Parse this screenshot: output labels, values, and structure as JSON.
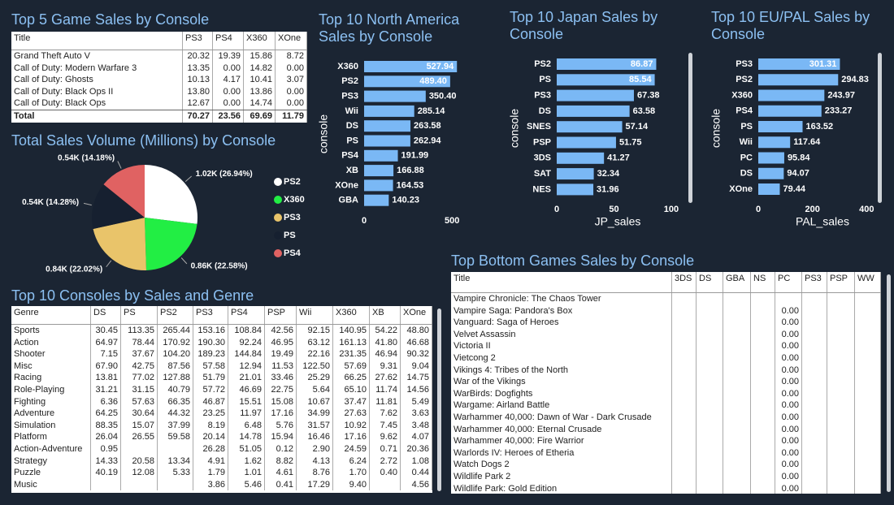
{
  "chart_data": [
    {
      "type": "pie",
      "title": "Total Sales Volume (Millions) by Console",
      "categories": [
        "PS2",
        "X360",
        "PS3",
        "PS",
        "PS4"
      ],
      "values": [
        26.94,
        22.58,
        22.02,
        14.28,
        14.18
      ],
      "value_labels": [
        "1.02K (26.94%)",
        "0.86K (22.58%)",
        "0.84K (22.02%)",
        "0.54K (14.28%)",
        "0.54K (14.18%)"
      ],
      "colors": [
        "#ffffff",
        "#22ee44",
        "#e9c46a",
        "#162030",
        "#e06262"
      ]
    },
    {
      "type": "bar",
      "title": "Top 10 North America Sales by Console",
      "y_label": "console",
      "categories": [
        "X360",
        "PS2",
        "PS3",
        "Wii",
        "DS",
        "PS",
        "PS4",
        "XB",
        "XOne",
        "GBA"
      ],
      "values": [
        527.94,
        489.4,
        350.4,
        285.14,
        263.58,
        262.94,
        191.99,
        166.88,
        164.53,
        140.23
      ],
      "value_labels": [
        "527.94",
        "489.40",
        "350.40",
        "285.14",
        "263.58",
        "262.94",
        "191.99",
        "166.88",
        "164.53",
        "140.23"
      ],
      "color": "#7ab8f5",
      "xlim": [
        0,
        550
      ],
      "xticks": [
        0,
        500
      ]
    },
    {
      "type": "bar",
      "title": "Top 10 Japan Sales by Console",
      "y_label": "console",
      "x_label": "JP_sales",
      "categories": [
        "PS2",
        "PS",
        "PS3",
        "DS",
        "SNES",
        "PSP",
        "3DS",
        "SAT",
        "NES"
      ],
      "values": [
        86.87,
        85.54,
        67.38,
        63.58,
        57.14,
        51.75,
        41.27,
        32.34,
        31.96
      ],
      "color": "#7ab8f5",
      "xlim": [
        0,
        105
      ],
      "xticks": [
        0,
        50,
        100
      ]
    },
    {
      "type": "bar",
      "title": "Top 10 EU/PAL Sales by Console",
      "y_label": "console",
      "x_label": "PAL_sales",
      "categories": [
        "PS3",
        "PS2",
        "X360",
        "PS4",
        "PS",
        "Wii",
        "PC",
        "DS",
        "XOne"
      ],
      "values": [
        301.31,
        294.83,
        243.97,
        233.27,
        163.52,
        117.64,
        95.84,
        94.07,
        79.44
      ],
      "color": "#7ab8f5",
      "xlim": [
        0,
        420
      ],
      "xticks": [
        0,
        200,
        400
      ]
    }
  ],
  "tables": [
    {
      "title": "Top 5 Game Sales by Console",
      "columns": [
        "Title",
        "PS3",
        "PS4",
        "X360",
        "XOne"
      ],
      "rows": [
        [
          "Grand Theft Auto V",
          "20.32",
          "19.39",
          "15.86",
          "8.72"
        ],
        [
          "Call of Duty: Modern Warfare 3",
          "13.35",
          "0.00",
          "14.82",
          "0.00"
        ],
        [
          "Call of Duty: Ghosts",
          "10.13",
          "4.17",
          "10.41",
          "3.07"
        ],
        [
          "Call of Duty: Black Ops II",
          "13.80",
          "0.00",
          "13.86",
          "0.00"
        ],
        [
          "Call of Duty: Black Ops",
          "12.67",
          "0.00",
          "14.74",
          "0.00"
        ]
      ],
      "total_row": [
        "Total",
        "70.27",
        "23.56",
        "69.69",
        "11.79"
      ]
    },
    {
      "title": "Top 10 Consoles by Sales and Genre",
      "columns": [
        "Genre",
        "DS",
        "PS",
        "PS2",
        "PS3",
        "PS4",
        "PSP",
        "Wii",
        "X360",
        "XB",
        "XOne"
      ],
      "rows": [
        [
          "Sports",
          "30.45",
          "113.35",
          "265.44",
          "153.16",
          "108.84",
          "42.56",
          "92.15",
          "140.95",
          "54.22",
          "48.80"
        ],
        [
          "Action",
          "64.97",
          "78.44",
          "170.92",
          "190.30",
          "92.24",
          "46.95",
          "63.12",
          "161.13",
          "41.80",
          "46.68"
        ],
        [
          "Shooter",
          "7.15",
          "37.67",
          "104.20",
          "189.23",
          "144.84",
          "19.49",
          "22.16",
          "231.35",
          "46.94",
          "90.32"
        ],
        [
          "Misc",
          "67.90",
          "42.75",
          "87.56",
          "57.58",
          "12.94",
          "11.53",
          "122.50",
          "57.69",
          "9.31",
          "9.04"
        ],
        [
          "Racing",
          "13.81",
          "77.02",
          "127.88",
          "51.79",
          "21.01",
          "33.46",
          "25.29",
          "66.25",
          "27.62",
          "14.75"
        ],
        [
          "Role-Playing",
          "31.21",
          "31.15",
          "40.79",
          "57.72",
          "46.69",
          "22.75",
          "5.64",
          "65.10",
          "11.74",
          "14.56"
        ],
        [
          "Fighting",
          "6.36",
          "57.63",
          "66.35",
          "46.87",
          "15.51",
          "15.08",
          "10.67",
          "37.47",
          "11.81",
          "5.49"
        ],
        [
          "Adventure",
          "64.25",
          "30.64",
          "44.32",
          "23.25",
          "11.97",
          "17.16",
          "34.99",
          "27.63",
          "7.62",
          "3.63"
        ],
        [
          "Simulation",
          "88.35",
          "15.07",
          "37.99",
          "8.19",
          "6.48",
          "5.76",
          "31.57",
          "10.92",
          "7.45",
          "3.48"
        ],
        [
          "Platform",
          "26.04",
          "26.55",
          "59.58",
          "20.14",
          "14.78",
          "15.94",
          "16.46",
          "17.16",
          "9.62",
          "4.07"
        ],
        [
          "Action-Adventure",
          "0.95",
          null,
          null,
          "26.28",
          "51.05",
          "0.12",
          "2.90",
          "24.59",
          "0.71",
          "20.36"
        ],
        [
          "Strategy",
          "14.33",
          "20.58",
          "13.34",
          "4.91",
          "1.62",
          "8.82",
          "4.13",
          "6.24",
          "2.72",
          "1.08"
        ],
        [
          "Puzzle",
          "40.19",
          "12.08",
          "5.33",
          "1.79",
          "1.01",
          "4.61",
          "8.76",
          "1.70",
          "0.40",
          "0.44"
        ],
        [
          "Music",
          null,
          null,
          null,
          "3.86",
          "5.46",
          "0.41",
          "17.29",
          "9.40",
          null,
          "4.56"
        ]
      ]
    },
    {
      "title": "Top Bottom Games Sales by Console",
      "columns": [
        "Title",
        "3DS",
        "DS",
        "GBA",
        "NS",
        "PC",
        "PS3",
        "PSP",
        "WW"
      ],
      "rows": [
        [
          "Vampire Chronicle: The Chaos Tower",
          null,
          null,
          null,
          null,
          null,
          null,
          null,
          null
        ],
        [
          "Vampire Saga: Pandora's Box",
          null,
          null,
          null,
          null,
          "0.00",
          null,
          null,
          null
        ],
        [
          "Vanguard: Saga of Heroes",
          null,
          null,
          null,
          null,
          "0.00",
          null,
          null,
          null
        ],
        [
          "Velvet Assassin",
          null,
          null,
          null,
          null,
          "0.00",
          null,
          null,
          null
        ],
        [
          "Victoria II",
          null,
          null,
          null,
          null,
          "0.00",
          null,
          null,
          null
        ],
        [
          "Vietcong 2",
          null,
          null,
          null,
          null,
          "0.00",
          null,
          null,
          null
        ],
        [
          "Vikings 4: Tribes of the North",
          null,
          null,
          null,
          null,
          "0.00",
          null,
          null,
          null
        ],
        [
          "War of the Vikings",
          null,
          null,
          null,
          null,
          "0.00",
          null,
          null,
          null
        ],
        [
          "WarBirds: Dogfights",
          null,
          null,
          null,
          null,
          "0.00",
          null,
          null,
          null
        ],
        [
          "Wargame: Airland Battle",
          null,
          null,
          null,
          null,
          "0.00",
          null,
          null,
          null
        ],
        [
          "Warhammer 40,000: Dawn of War - Dark Crusade",
          null,
          null,
          null,
          null,
          "0.00",
          null,
          null,
          null
        ],
        [
          "Warhammer 40,000: Eternal Crusade",
          null,
          null,
          null,
          null,
          "0.00",
          null,
          null,
          null
        ],
        [
          "Warhammer 40,000: Fire Warrior",
          null,
          null,
          null,
          null,
          "0.00",
          null,
          null,
          null
        ],
        [
          "Warlords IV: Heroes of Etheria",
          null,
          null,
          null,
          null,
          "0.00",
          null,
          null,
          null
        ],
        [
          "Watch Dogs 2",
          null,
          null,
          null,
          null,
          "0.00",
          null,
          null,
          null
        ],
        [
          "Wildlife Park 2",
          null,
          null,
          null,
          null,
          "0.00",
          null,
          null,
          null
        ],
        [
          "Wildlife Park: Gold Edition",
          null,
          null,
          null,
          null,
          "0.00",
          null,
          null,
          null
        ]
      ]
    }
  ]
}
